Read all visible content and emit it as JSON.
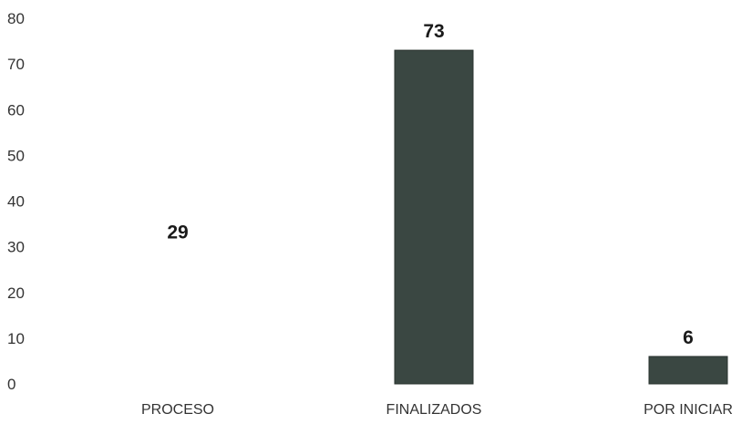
{
  "colors": {
    "bar": "#3a4742",
    "bar_edge": "#2a332f",
    "text": "#333333"
  },
  "chart_data": {
    "type": "bar",
    "categories": [
      "PROCESO",
      "FINALIZADOS",
      "POR INICIAR"
    ],
    "values": [
      29,
      73,
      6
    ],
    "data_labels": [
      "29",
      "73",
      "6"
    ],
    "title": "",
    "xlabel": "",
    "ylabel": "",
    "ylim": [
      0,
      80
    ],
    "yticks": [
      "0",
      "10",
      "20",
      "30",
      "40",
      "50",
      "60",
      "70",
      "80"
    ],
    "grid": false,
    "legend": "none",
    "bar_visible": [
      false,
      true,
      true
    ]
  }
}
